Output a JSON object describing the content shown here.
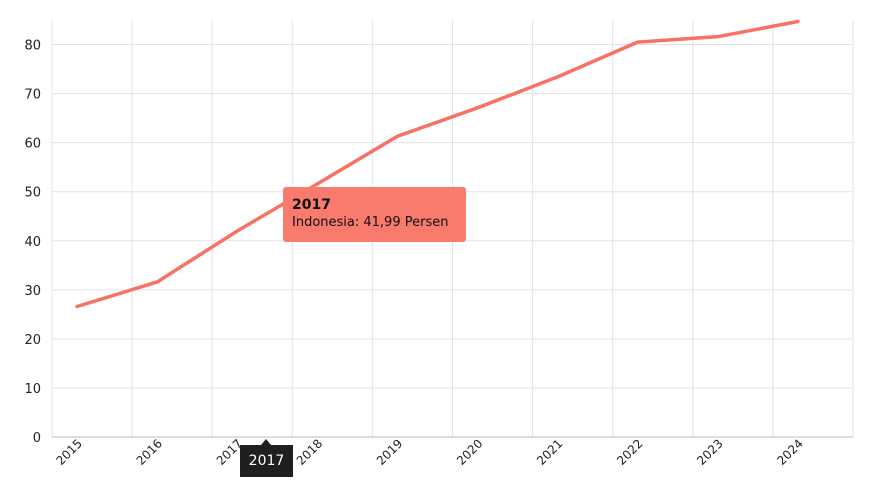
{
  "chart_data": {
    "type": "line",
    "title": "",
    "xlabel": "",
    "ylabel": "",
    "categories": [
      "2015",
      "2016",
      "2017",
      "2018",
      "2019",
      "2020",
      "2021",
      "2022",
      "2023",
      "2024"
    ],
    "series": [
      {
        "name": "Indonesia",
        "color": "#f87264",
        "values": [
          26.6,
          31.6,
          41.99,
          51.6,
          61.3,
          67.1,
          73.4,
          80.5,
          81.6,
          84.7
        ]
      }
    ],
    "y_ticks": [
      "0",
      "10",
      "20",
      "30",
      "40",
      "50",
      "60",
      "70",
      "80"
    ],
    "ylim": [
      0,
      85
    ],
    "grid": true
  },
  "tooltip": {
    "title": "2017",
    "text": "Indonesia: 41,99 Persen"
  },
  "axis_pointer": {
    "label": "2017"
  }
}
